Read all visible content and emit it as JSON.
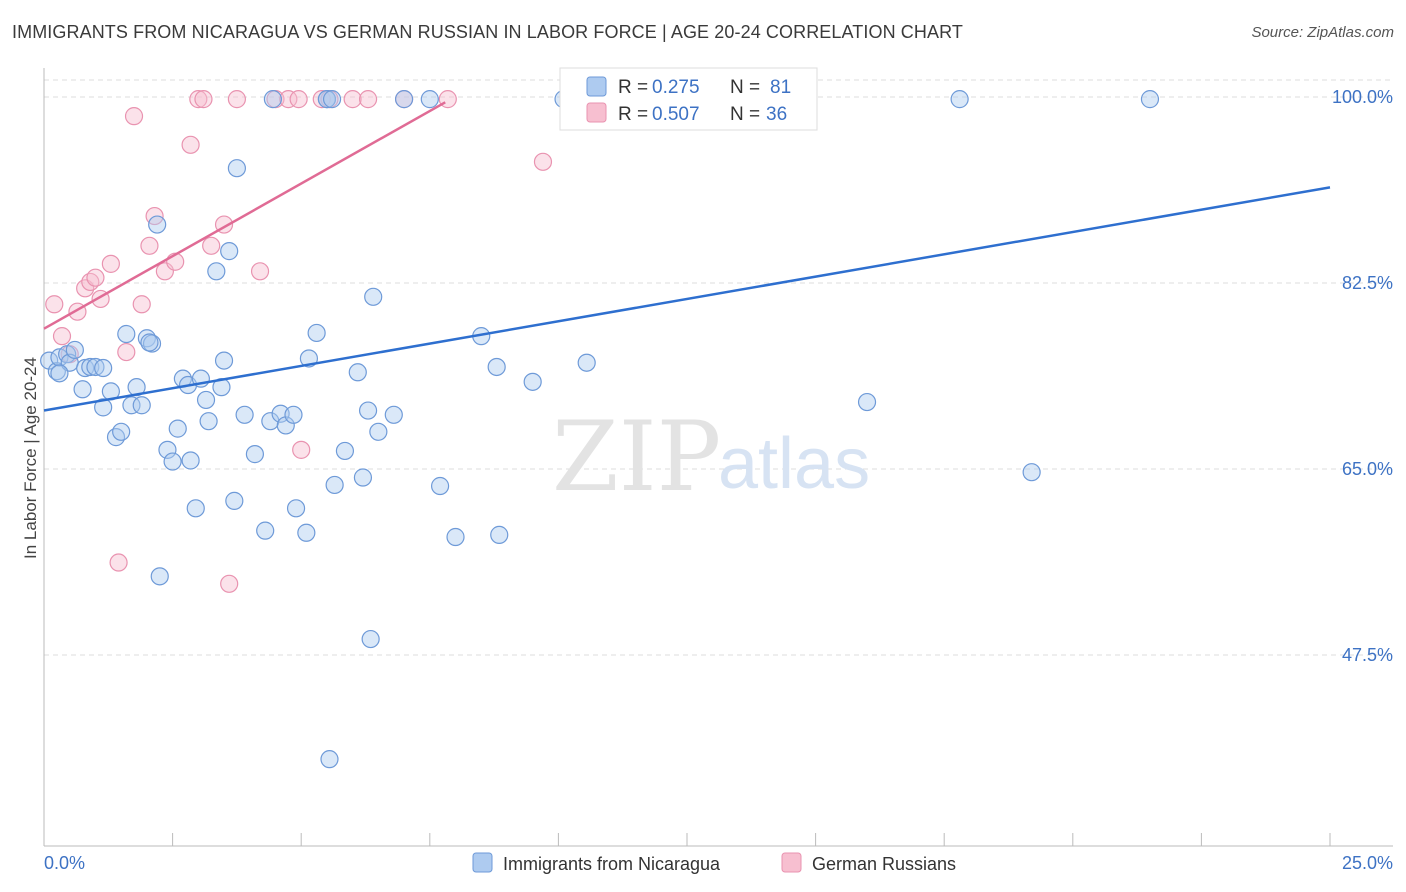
{
  "title": "IMMIGRANTS FROM NICARAGUA VS GERMAN RUSSIAN IN LABOR FORCE | AGE 20-24 CORRELATION CHART",
  "source": "Source: ZipAtlas.com",
  "watermark": {
    "zip": "ZIP",
    "atlas": "atlas"
  },
  "colors": {
    "blue_fill": "#aecbf0",
    "blue_stroke": "#6e9ad8",
    "blue_line": "#2e6fcf",
    "pink_fill": "#f7bfd0",
    "pink_stroke": "#e993b0",
    "pink_line": "#e06b95",
    "tick_text": "#3d72c4",
    "grid": "#dddddd"
  },
  "chart_data": {
    "type": "scatter",
    "title": "IMMIGRANTS FROM NICARAGUA VS GERMAN RUSSIAN IN LABOR FORCE | AGE 20-24 CORRELATION CHART",
    "xlabel": "",
    "ylabel": "In Labor Force | Age 20-24",
    "xlim": [
      0,
      25
    ],
    "ylim": [
      30,
      101.5
    ],
    "x_tick_labels": [
      "0.0%",
      "25.0%"
    ],
    "y_ticks": [
      47.5,
      65.0,
      82.5,
      100.0
    ],
    "y_tick_labels": [
      "47.5%",
      "65.0%",
      "82.5%",
      "100.0%"
    ],
    "legend": [
      {
        "name": "Immigrants from Nicaragua",
        "r_label": "R =",
        "r": "0.275",
        "n_label": "N =",
        "n": "81"
      },
      {
        "name": "German Russians",
        "r_label": "R =",
        "r": "0.507",
        "n_label": "N =",
        "n": "36"
      }
    ],
    "series": [
      {
        "name": "Immigrants from Nicaragua",
        "color": "blue",
        "trend": {
          "x0": 0.0,
          "y0": 70.5,
          "x1": 25.0,
          "y1": 91.5
        },
        "points": [
          [
            0.1,
            75.2
          ],
          [
            0.25,
            74.2
          ],
          [
            0.3,
            75.5
          ],
          [
            0.45,
            75.8
          ],
          [
            0.5,
            75.0
          ],
          [
            0.6,
            76.2
          ],
          [
            0.75,
            72.5
          ],
          [
            0.8,
            74.5
          ],
          [
            0.9,
            74.6
          ],
          [
            1.0,
            74.6
          ],
          [
            1.15,
            74.5
          ],
          [
            1.15,
            70.8
          ],
          [
            1.3,
            72.3
          ],
          [
            1.4,
            68.0
          ],
          [
            1.5,
            68.5
          ],
          [
            1.6,
            77.7
          ],
          [
            1.7,
            71.0
          ],
          [
            1.8,
            72.7
          ],
          [
            1.9,
            71.0
          ],
          [
            2.0,
            77.3
          ],
          [
            2.1,
            76.8
          ],
          [
            2.2,
            88.0
          ],
          [
            2.25,
            54.9
          ],
          [
            2.4,
            66.8
          ],
          [
            2.5,
            65.7
          ],
          [
            2.6,
            68.8
          ],
          [
            2.7,
            73.5
          ],
          [
            2.8,
            72.9
          ],
          [
            2.85,
            65.8
          ],
          [
            2.95,
            61.3
          ],
          [
            3.05,
            73.5
          ],
          [
            3.15,
            71.5
          ],
          [
            3.2,
            69.5
          ],
          [
            3.35,
            83.6
          ],
          [
            3.45,
            72.7
          ],
          [
            3.5,
            75.2
          ],
          [
            3.6,
            85.5
          ],
          [
            3.7,
            62.0
          ],
          [
            3.75,
            93.3
          ],
          [
            3.9,
            70.1
          ],
          [
            4.1,
            66.4
          ],
          [
            4.3,
            59.2
          ],
          [
            4.4,
            69.5
          ],
          [
            4.45,
            99.8
          ],
          [
            4.6,
            70.2
          ],
          [
            4.7,
            69.1
          ],
          [
            4.85,
            70.1
          ],
          [
            4.9,
            61.3
          ],
          [
            5.1,
            59.0
          ],
          [
            5.15,
            75.4
          ],
          [
            5.3,
            77.8
          ],
          [
            5.5,
            99.8
          ],
          [
            5.5,
            99.8
          ],
          [
            5.55,
            37.7
          ],
          [
            5.65,
            63.5
          ],
          [
            5.85,
            66.7
          ],
          [
            6.1,
            74.1
          ],
          [
            6.2,
            64.2
          ],
          [
            6.3,
            70.5
          ],
          [
            6.4,
            81.2
          ],
          [
            6.5,
            68.5
          ],
          [
            6.8,
            70.1
          ],
          [
            7.0,
            99.8
          ],
          [
            7.5,
            99.8
          ],
          [
            7.7,
            63.4
          ],
          [
            8.0,
            58.6
          ],
          [
            8.5,
            77.5
          ],
          [
            8.8,
            74.6
          ],
          [
            8.85,
            58.8
          ],
          [
            9.5,
            73.2
          ],
          [
            10.1,
            99.8
          ],
          [
            10.4,
            99.8
          ],
          [
            10.55,
            75.0
          ],
          [
            16.0,
            71.3
          ],
          [
            17.8,
            99.8
          ],
          [
            19.2,
            64.7
          ],
          [
            21.5,
            99.8
          ],
          [
            6.35,
            49.0
          ],
          [
            0.3,
            74.0
          ],
          [
            5.6,
            99.8
          ],
          [
            2.05,
            76.9
          ]
        ]
      },
      {
        "name": "German Russians",
        "color": "pink",
        "trend": {
          "x0": 0.0,
          "y0": 78.2,
          "x1": 7.8,
          "y1": 99.5
        },
        "points": [
          [
            0.2,
            80.5
          ],
          [
            0.35,
            77.5
          ],
          [
            0.5,
            75.8
          ],
          [
            0.65,
            79.8
          ],
          [
            0.8,
            82.0
          ],
          [
            0.9,
            82.6
          ],
          [
            1.0,
            83.0
          ],
          [
            1.1,
            81.0
          ],
          [
            1.3,
            84.3
          ],
          [
            1.45,
            56.2
          ],
          [
            1.6,
            76.0
          ],
          [
            1.75,
            98.2
          ],
          [
            1.9,
            80.5
          ],
          [
            2.05,
            86.0
          ],
          [
            2.15,
            88.8
          ],
          [
            2.35,
            83.6
          ],
          [
            2.55,
            84.5
          ],
          [
            2.85,
            95.5
          ],
          [
            3.0,
            99.8
          ],
          [
            3.1,
            99.8
          ],
          [
            3.25,
            86.0
          ],
          [
            3.5,
            88.0
          ],
          [
            3.6,
            54.2
          ],
          [
            3.75,
            99.8
          ],
          [
            4.2,
            83.6
          ],
          [
            4.5,
            99.8
          ],
          [
            4.75,
            99.8
          ],
          [
            4.95,
            99.8
          ],
          [
            5.0,
            66.8
          ],
          [
            5.4,
            99.8
          ],
          [
            5.55,
            99.8
          ],
          [
            6.0,
            99.8
          ],
          [
            6.3,
            99.8
          ],
          [
            7.0,
            99.8
          ],
          [
            7.85,
            99.8
          ],
          [
            9.7,
            93.9
          ]
        ]
      }
    ]
  }
}
